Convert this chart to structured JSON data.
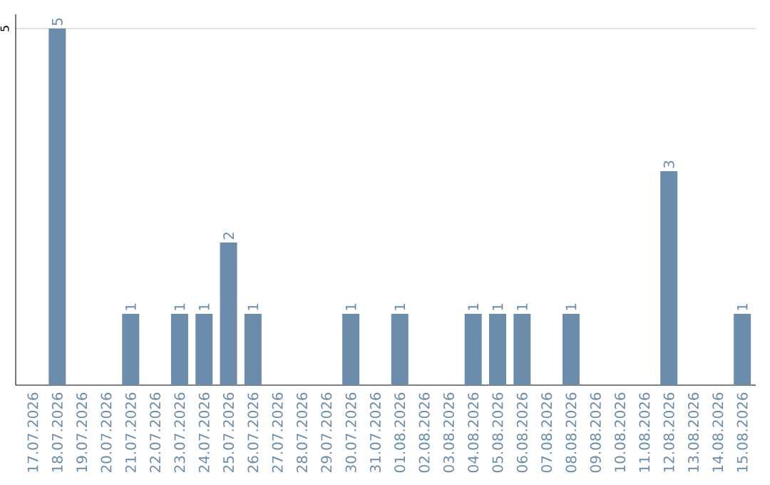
{
  "chart_data": {
    "type": "bar",
    "categories": [
      "17.07.2026",
      "18.07.2026",
      "19.07.2026",
      "20.07.2026",
      "21.07.2026",
      "22.07.2026",
      "23.07.2026",
      "24.07.2026",
      "25.07.2026",
      "26.07.2026",
      "27.07.2026",
      "28.07.2026",
      "29.07.2026",
      "30.07.2026",
      "31.07.2026",
      "01.08.2026",
      "02.08.2026",
      "03.08.2026",
      "04.08.2026",
      "05.08.2026",
      "06.08.2026",
      "07.08.2026",
      "08.08.2026",
      "09.08.2026",
      "10.08.2026",
      "11.08.2026",
      "12.08.2026",
      "13.08.2026",
      "14.08.2026",
      "15.08.2026"
    ],
    "values": [
      0,
      5,
      0,
      0,
      1,
      0,
      1,
      1,
      2,
      1,
      0,
      0,
      0,
      1,
      0,
      1,
      0,
      0,
      1,
      1,
      1,
      0,
      1,
      0,
      0,
      0,
      3,
      0,
      0,
      1
    ],
    "value_labels": [
      null,
      "5",
      null,
      null,
      "1",
      null,
      "1",
      "1",
      "2",
      "1",
      null,
      null,
      null,
      "1",
      null,
      "1",
      null,
      null,
      "1",
      "1",
      "1",
      null,
      "1",
      null,
      null,
      null,
      "3",
      null,
      null,
      "1"
    ],
    "color": "#6b8caa",
    "ylim": [
      0,
      5.2
    ],
    "yticks": [
      5
    ],
    "grid": "y"
  }
}
